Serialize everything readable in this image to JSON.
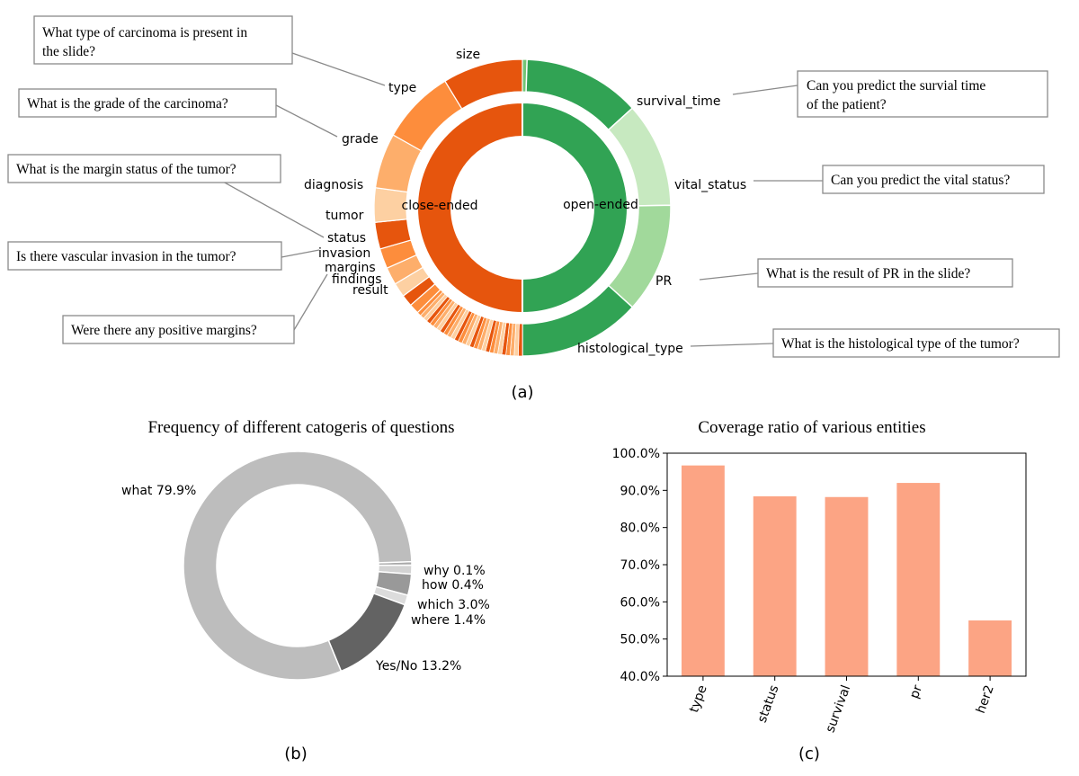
{
  "panel_a": {
    "caption": "(a)",
    "inner_labels": {
      "close": "close-ended",
      "open": "open-ended"
    },
    "colors": {
      "open": "#31a354",
      "close": "#e6550d",
      "open_shades": [
        "#74c476",
        "#a1d99b",
        "#c7e9c0",
        "#31a354"
      ],
      "close_shades": [
        "#e6550d",
        "#fd8d3c",
        "#fdae6b",
        "#fdd0a2"
      ]
    },
    "outer_labels": [
      "survival_time",
      "vital_status",
      "PR",
      "histological_type",
      "size",
      "type",
      "grade",
      "diagnosis",
      "tumor",
      "status",
      "invasion",
      "margins",
      "findings",
      "result"
    ],
    "callouts": [
      "What type of carcinoma is present in",
      "the slide?",
      "What is the grade of the carcinoma?",
      "What is the margin status of the tumor?",
      "Is there vascular invasion in the tumor?",
      "Were there any positive margins?",
      "Can you predict the survial time",
      "of the patient?",
      "Can you predict the vital status?",
      "What is the result of PR in the slide?",
      "What is the histological type of the tumor?"
    ]
  },
  "panel_b": {
    "caption": "(b)",
    "title": "Frequency of different catogeris of questions",
    "labels": [
      "what 79.9%",
      "why 0.1%",
      "how 0.4%",
      "which 3.0%",
      "where 1.4%",
      "Yes/No 13.2%"
    ]
  },
  "panel_c": {
    "caption": "(c)",
    "title": "Coverage ratio of various entities"
  },
  "chart_data": [
    {
      "type": "pie",
      "subtype": "nested-donut",
      "inner_ring": [
        {
          "label": "open-ended",
          "value": 50,
          "color": "#31a354"
        },
        {
          "label": "close-ended",
          "value": 50,
          "color": "#e6550d"
        }
      ],
      "outer_ring": [
        {
          "label": "survival_time",
          "group": "open-ended",
          "value": 12.4
        },
        {
          "label": "vital_status",
          "group": "open-ended",
          "value": 11.1
        },
        {
          "label": "PR",
          "group": "open-ended",
          "value": 11.6
        },
        {
          "label": "histological_type",
          "group": "open-ended",
          "value": 12.9
        },
        {
          "label": "size",
          "group": "close-ended",
          "value": 9.6
        },
        {
          "label": "type",
          "group": "close-ended",
          "value": 8.9
        },
        {
          "label": "grade",
          "group": "close-ended",
          "value": 6.6
        },
        {
          "label": "diagnosis",
          "group": "close-ended",
          "value": 4.1
        },
        {
          "label": "tumor",
          "group": "close-ended",
          "value": 3.2
        },
        {
          "label": "status",
          "group": "close-ended",
          "value": 2.4
        },
        {
          "label": "invasion",
          "group": "close-ended",
          "value": 2.1
        },
        {
          "label": "margins",
          "group": "close-ended",
          "value": 1.7
        },
        {
          "label": "findings",
          "group": "close-ended",
          "value": 1.4
        },
        {
          "label": "result",
          "group": "close-ended",
          "value": 1.2
        }
      ]
    },
    {
      "type": "pie",
      "subtype": "donut",
      "title": "Frequency of different catogeris of questions",
      "slices": [
        {
          "label": "what",
          "value": 79.9,
          "color": "#bdbdbd"
        },
        {
          "label": "why",
          "value": 0.1,
          "color": "#a9a9a9"
        },
        {
          "label": "how",
          "value": 0.4,
          "color": "#d3d3d3"
        },
        {
          "label": "which",
          "value": 3.0,
          "color": "#999999"
        },
        {
          "label": "where",
          "value": 1.4,
          "color": "#dcdcdc"
        },
        {
          "label": "Yes/No",
          "value": 13.2,
          "color": "#636363"
        }
      ]
    },
    {
      "type": "bar",
      "title": "Coverage ratio of various entities",
      "categories": [
        "type",
        "status",
        "survival",
        "pr",
        "her2"
      ],
      "values": [
        96.7,
        88.4,
        88.2,
        92.0,
        55.0
      ],
      "ylim": [
        40,
        100
      ],
      "yticks": [
        "40.0%",
        "50.0%",
        "60.0%",
        "70.0%",
        "80.0%",
        "90.0%",
        "100.0%"
      ],
      "color": "#fca484",
      "grid": false
    }
  ]
}
